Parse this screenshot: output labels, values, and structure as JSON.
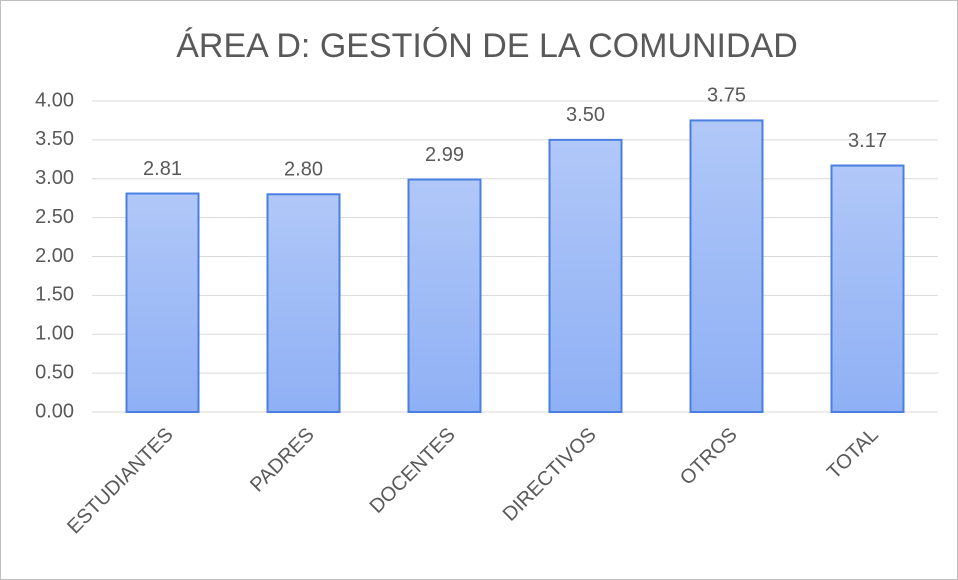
{
  "chart_data": {
    "type": "bar",
    "title": "ÁREA D: GESTIÓN DE LA COMUNIDAD",
    "categories": [
      "ESTUDIANTES",
      "PADRES",
      "DOCENTES",
      "DIRECTIVOS",
      "OTROS",
      "TOTAL"
    ],
    "values": [
      2.81,
      2.8,
      2.99,
      3.5,
      3.75,
      3.17
    ],
    "value_labels": [
      "2.81",
      "2.80",
      "2.99",
      "3.50",
      "3.75",
      "3.17"
    ],
    "color": "#8fb0f5",
    "ylim": [
      0,
      4
    ],
    "yticks": [
      {
        "value": 0,
        "label": "0.00"
      },
      {
        "value": 0.5,
        "label": "0.50"
      },
      {
        "value": 1,
        "label": "1.00"
      },
      {
        "value": 1.5,
        "label": "1.50"
      },
      {
        "value": 2,
        "label": "2.00"
      },
      {
        "value": 2.5,
        "label": "2.50"
      },
      {
        "value": 3,
        "label": "3.00"
      },
      {
        "value": 3.5,
        "label": "3.50"
      },
      {
        "value": 4,
        "label": "4.00"
      }
    ],
    "grid": true
  }
}
